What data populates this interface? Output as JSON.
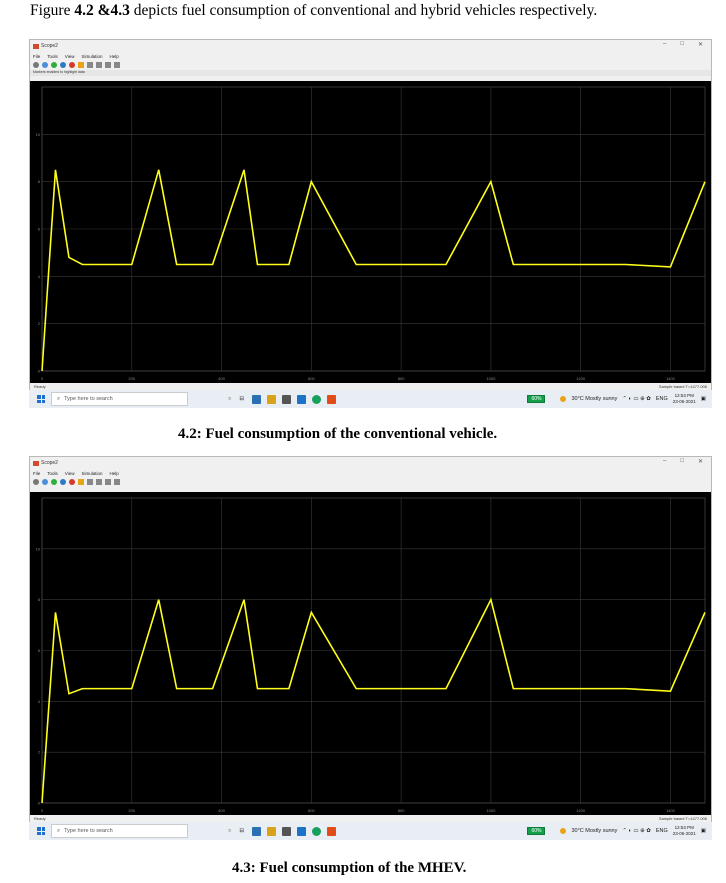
{
  "intro": {
    "pre": "Figure ",
    "bold": "4.2 &4.3",
    "post": " depicts fuel consumption of conventional and hybrid vehicles respectively."
  },
  "figures": [
    {
      "caption": "4.2: Fuel consumption of the conventional vehicle.",
      "window": {
        "title": "Scope2",
        "menu": [
          "File",
          "Tools",
          "View",
          "Simulation",
          "Help"
        ],
        "info": "Markers enabled to highlight data",
        "status_left": "Ready",
        "status_right": "Sample based  T=1477.006",
        "x_ticks": [
          "0",
          "200",
          "400",
          "600",
          "800",
          "1000",
          "1200",
          "1400"
        ],
        "y_ticks": [
          "0",
          "2",
          "4",
          "6",
          "8",
          "10"
        ]
      },
      "taskbar": {
        "search": "Type here to search",
        "battery": "60%",
        "weather": "30°C  Mostly sunny",
        "lang": "ENG",
        "time": "12:53 PM",
        "date": "23-06-2021"
      }
    },
    {
      "caption": "4.3: Fuel consumption of the MHEV.",
      "window": {
        "title": "Scope2",
        "menu": [
          "File",
          "Tools",
          "View",
          "Simulation",
          "Help"
        ],
        "info": "",
        "status_left": "Ready",
        "status_right": "Sample based  T=1477.006",
        "x_ticks": [
          "0",
          "200",
          "400",
          "600",
          "800",
          "1000",
          "1200",
          "1400"
        ],
        "y_ticks": [
          "0",
          "2",
          "4",
          "6",
          "8",
          "10"
        ]
      },
      "taskbar": {
        "search": "Type here to search",
        "battery": "60%",
        "weather": "30°C  Mostly sunny",
        "lang": "ENG",
        "time": "12:53 PM",
        "date": "23-06-2021"
      }
    }
  ],
  "colors": {
    "plot_bg": "#000000",
    "signal": "#ffff1a",
    "grid": "#3a3a3a"
  },
  "chart_data": [
    {
      "type": "line",
      "xlim": [
        0,
        1477
      ],
      "ylim": [
        0,
        12
      ],
      "grid": true,
      "series": [
        {
          "x": [
            0,
            30,
            60,
            90,
            150,
            200,
            260,
            300,
            380,
            450,
            480,
            550,
            600,
            700,
            800,
            900,
            1000,
            1050,
            1100,
            1200,
            1300,
            1400,
            1477
          ],
          "values": [
            0,
            8.5,
            4.8,
            4.5,
            4.5,
            4.5,
            8.5,
            4.5,
            4.5,
            8.5,
            4.5,
            4.5,
            8.0,
            4.5,
            4.5,
            4.5,
            8.0,
            4.5,
            4.5,
            4.5,
            4.5,
            4.4,
            8.0
          ]
        }
      ]
    },
    {
      "type": "line",
      "xlim": [
        0,
        1477
      ],
      "ylim": [
        0,
        12
      ],
      "grid": true,
      "series": [
        {
          "x": [
            0,
            30,
            60,
            90,
            150,
            200,
            260,
            300,
            380,
            450,
            480,
            550,
            600,
            700,
            800,
            900,
            1000,
            1050,
            1100,
            1200,
            1300,
            1400,
            1477
          ],
          "values": [
            0,
            7.5,
            4.3,
            4.5,
            4.5,
            4.5,
            8.0,
            4.5,
            4.5,
            8.0,
            4.5,
            4.5,
            7.5,
            4.5,
            4.5,
            4.5,
            8.0,
            4.5,
            4.5,
            4.5,
            4.5,
            4.4,
            7.5
          ]
        }
      ]
    }
  ]
}
